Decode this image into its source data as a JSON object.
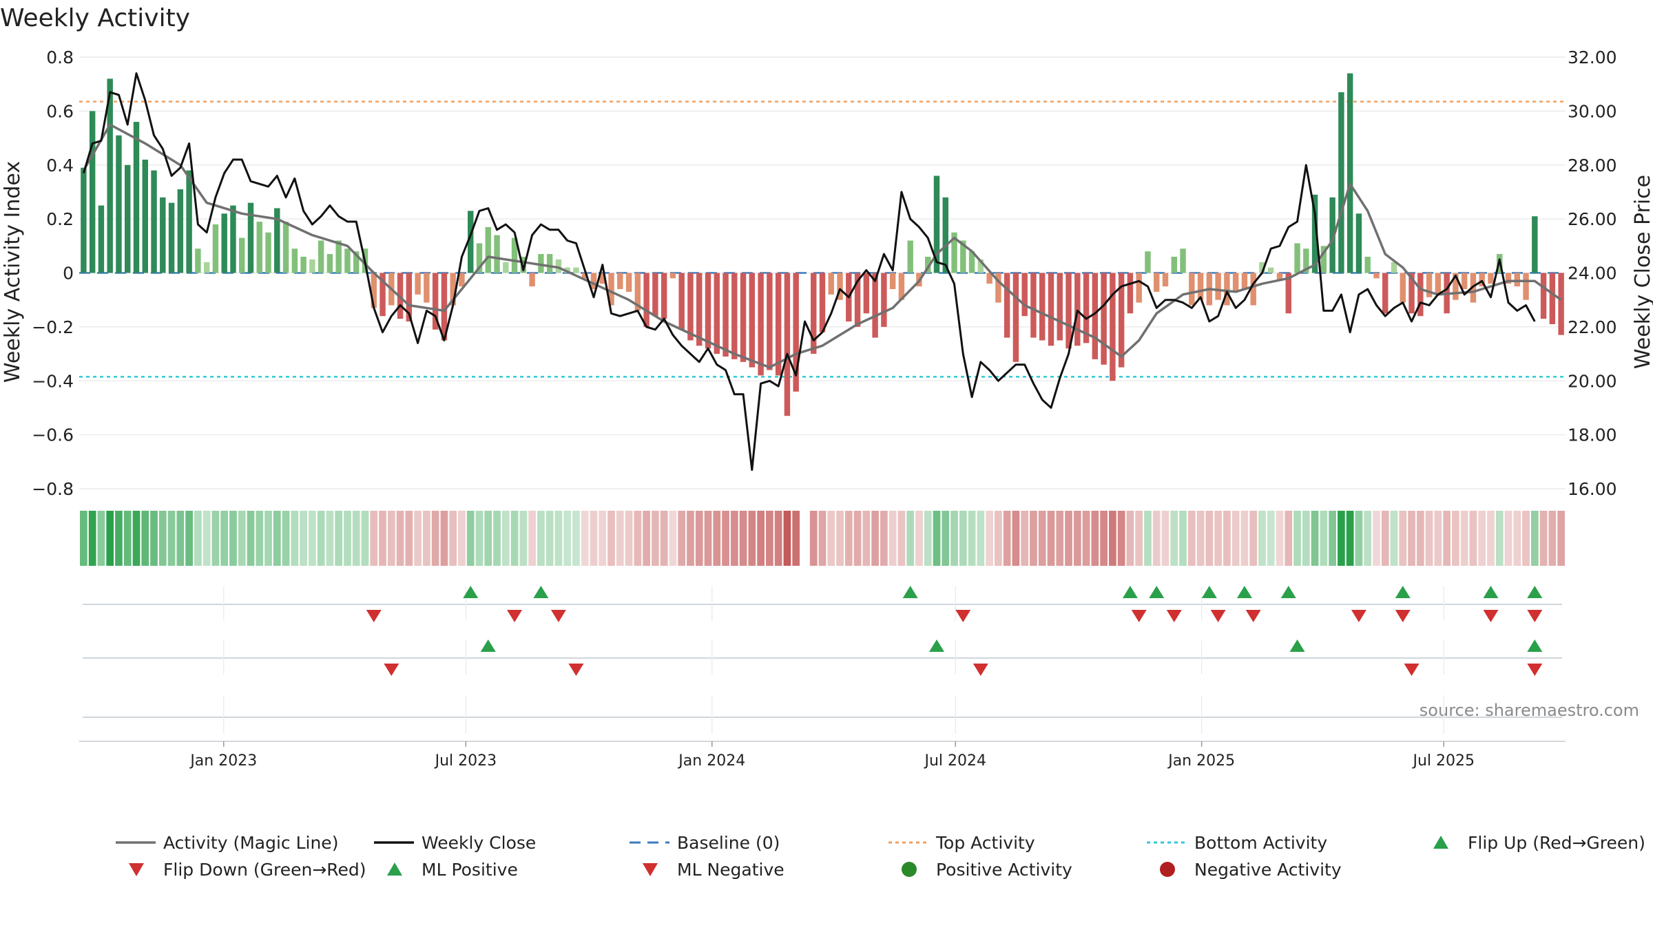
{
  "chart_data": {
    "type": "bar",
    "title": "Weekly Activity",
    "ylabel": "Weekly Activity Index",
    "ylabel_right": "Weekly Close Price",
    "source": "source: sharemaestro.com",
    "ylim": [
      -0.8,
      0.8
    ],
    "ylim_right": [
      16,
      32
    ],
    "yticks": [
      "0.8",
      "0.6",
      "0.4",
      "0.2",
      "0",
      "−0.2",
      "−0.4",
      "−0.6",
      "−0.8"
    ],
    "yticks_right": [
      "32.00",
      "30.00",
      "28.00",
      "26.00",
      "24.00",
      "22.00",
      "20.00",
      "18.00",
      "16.00"
    ],
    "top_activity": 0.635,
    "bottom_activity": -0.385,
    "x_range": [
      "2022-09-15",
      "2025-09-30"
    ],
    "x_ticks": [
      {
        "label": "Jan 2023",
        "date": "2023-01-01"
      },
      {
        "label": "Jul 2023",
        "date": "2023-07-01"
      },
      {
        "label": "Jan 2024",
        "date": "2024-01-01"
      },
      {
        "label": "Jul 2024",
        "date": "2024-07-01"
      },
      {
        "label": "Jan 2025",
        "date": "2025-01-01"
      },
      {
        "label": "Jul 2025",
        "date": "2025-07-01"
      }
    ],
    "activity_anchors": [
      [
        0,
        0.39
      ],
      [
        1,
        0.6
      ],
      [
        2,
        0.25
      ],
      [
        3,
        0.72
      ],
      [
        4,
        0.51
      ],
      [
        5,
        0.4
      ],
      [
        6,
        0.56
      ],
      [
        7,
        0.42
      ],
      [
        8,
        0.38
      ],
      [
        9,
        0.28
      ],
      [
        10,
        0.26
      ],
      [
        11,
        0.31
      ],
      [
        12,
        0.38
      ],
      [
        13,
        0.09
      ],
      [
        14,
        0.04
      ],
      [
        15,
        0.18
      ],
      [
        16,
        0.22
      ],
      [
        17,
        0.25
      ],
      [
        18,
        0.13
      ],
      [
        19,
        0.26
      ],
      [
        20,
        0.19
      ],
      [
        21,
        0.15
      ],
      [
        22,
        0.24
      ],
      [
        23,
        0.19
      ],
      [
        24,
        0.09
      ],
      [
        25,
        0.06
      ],
      [
        26,
        0.05
      ],
      [
        27,
        0.12
      ],
      [
        28,
        0.07
      ],
      [
        29,
        0.12
      ],
      [
        30,
        0.09
      ],
      [
        31,
        0.08
      ],
      [
        32,
        0.09
      ],
      [
        33,
        -0.13
      ],
      [
        34,
        -0.16
      ],
      [
        35,
        -0.12
      ],
      [
        36,
        -0.17
      ],
      [
        37,
        -0.18
      ],
      [
        38,
        -0.08
      ],
      [
        39,
        -0.11
      ],
      [
        40,
        -0.21
      ],
      [
        41,
        -0.25
      ],
      [
        42,
        -0.12
      ],
      [
        43,
        -0.05
      ],
      [
        44,
        0.23
      ],
      [
        45,
        0.11
      ],
      [
        46,
        0.17
      ],
      [
        47,
        0.14
      ],
      [
        48,
        0.04
      ],
      [
        49,
        0.13
      ],
      [
        50,
        0.06
      ],
      [
        51,
        -0.05
      ],
      [
        52,
        0.07
      ],
      [
        53,
        0.07
      ],
      [
        54,
        0.05
      ],
      [
        55,
        0.02
      ],
      [
        56,
        0.02
      ],
      [
        57,
        -0.02
      ],
      [
        58,
        -0.06
      ],
      [
        59,
        -0.04
      ],
      [
        60,
        -0.12
      ],
      [
        61,
        -0.06
      ],
      [
        62,
        -0.07
      ],
      [
        63,
        -0.14
      ],
      [
        64,
        -0.2
      ],
      [
        65,
        -0.16
      ],
      [
        66,
        -0.17
      ],
      [
        67,
        -0.02
      ],
      [
        68,
        -0.21
      ],
      [
        69,
        -0.25
      ],
      [
        70,
        -0.27
      ],
      [
        71,
        -0.28
      ],
      [
        72,
        -0.3
      ],
      [
        73,
        -0.31
      ],
      [
        74,
        -0.32
      ],
      [
        75,
        -0.33
      ],
      [
        76,
        -0.35
      ],
      [
        77,
        -0.38
      ],
      [
        78,
        -0.36
      ],
      [
        79,
        -0.38
      ],
      [
        80,
        -0.53
      ],
      [
        81,
        -0.44
      ],
      [
        83,
        -0.3
      ],
      [
        84,
        -0.22
      ],
      [
        85,
        -0.08
      ],
      [
        86,
        -0.1
      ],
      [
        87,
        -0.18
      ],
      [
        88,
        -0.2
      ],
      [
        89,
        -0.15
      ],
      [
        90,
        -0.24
      ],
      [
        91,
        -0.2
      ],
      [
        92,
        -0.06
      ],
      [
        93,
        -0.1
      ],
      [
        94,
        0.12
      ],
      [
        95,
        -0.05
      ],
      [
        96,
        0.06
      ],
      [
        97,
        0.36
      ],
      [
        98,
        0.28
      ],
      [
        99,
        0.15
      ],
      [
        100,
        0.12
      ],
      [
        101,
        0.08
      ],
      [
        102,
        0.05
      ],
      [
        103,
        -0.04
      ],
      [
        104,
        -0.11
      ],
      [
        105,
        -0.24
      ],
      [
        106,
        -0.33
      ],
      [
        107,
        -0.16
      ],
      [
        108,
        -0.24
      ],
      [
        109,
        -0.25
      ],
      [
        110,
        -0.27
      ],
      [
        111,
        -0.25
      ],
      [
        112,
        -0.28
      ],
      [
        113,
        -0.27
      ],
      [
        114,
        -0.26
      ],
      [
        115,
        -0.32
      ],
      [
        116,
        -0.34
      ],
      [
        117,
        -0.4
      ],
      [
        118,
        -0.35
      ],
      [
        119,
        -0.15
      ],
      [
        120,
        -0.11
      ],
      [
        121,
        0.08
      ],
      [
        122,
        -0.07
      ],
      [
        123,
        -0.05
      ],
      [
        124,
        0.06
      ],
      [
        125,
        0.09
      ],
      [
        126,
        -0.12
      ],
      [
        127,
        -0.1
      ],
      [
        128,
        -0.12
      ],
      [
        129,
        -0.1
      ],
      [
        130,
        -0.12
      ],
      [
        131,
        -0.07
      ],
      [
        132,
        -0.06
      ],
      [
        133,
        -0.12
      ],
      [
        134,
        0.04
      ],
      [
        135,
        0.02
      ],
      [
        136,
        -0.03
      ],
      [
        137,
        -0.15
      ],
      [
        138,
        0.11
      ],
      [
        139,
        0.09
      ],
      [
        140,
        0.29
      ],
      [
        141,
        0.1
      ],
      [
        142,
        0.28
      ],
      [
        143,
        0.67
      ],
      [
        144,
        0.74
      ],
      [
        145,
        0.22
      ],
      [
        146,
        0.06
      ],
      [
        147,
        -0.02
      ],
      [
        148,
        -0.15
      ],
      [
        149,
        0.04
      ],
      [
        150,
        -0.11
      ],
      [
        151,
        -0.15
      ],
      [
        152,
        -0.16
      ],
      [
        153,
        -0.09
      ],
      [
        154,
        -0.08
      ],
      [
        155,
        -0.15
      ],
      [
        156,
        -0.1
      ],
      [
        157,
        -0.06
      ],
      [
        158,
        -0.11
      ],
      [
        159,
        -0.05
      ],
      [
        160,
        -0.04
      ],
      [
        161,
        0.07
      ],
      [
        162,
        -0.04
      ],
      [
        163,
        -0.05
      ],
      [
        164,
        -0.1
      ],
      [
        165,
        0.21
      ],
      [
        166,
        -0.17
      ],
      [
        167,
        -0.19
      ],
      [
        168,
        -0.23
      ]
    ],
    "magic_line": [
      [
        0,
        0.38
      ],
      [
        3,
        0.55
      ],
      [
        7,
        0.48
      ],
      [
        11,
        0.4
      ],
      [
        14,
        0.26
      ],
      [
        18,
        0.22
      ],
      [
        22,
        0.2
      ],
      [
        26,
        0.14
      ],
      [
        30,
        0.1
      ],
      [
        33,
        0
      ],
      [
        37,
        -0.12
      ],
      [
        41,
        -0.14
      ],
      [
        43,
        -0.06
      ],
      [
        46,
        0.06
      ],
      [
        50,
        0.04
      ],
      [
        54,
        0.02
      ],
      [
        58,
        -0.04
      ],
      [
        62,
        -0.1
      ],
      [
        66,
        -0.18
      ],
      [
        70,
        -0.24
      ],
      [
        74,
        -0.3
      ],
      [
        78,
        -0.35
      ],
      [
        81,
        -0.3
      ],
      [
        84,
        -0.27
      ],
      [
        88,
        -0.19
      ],
      [
        92,
        -0.13
      ],
      [
        95,
        -0.03
      ],
      [
        97,
        0.07
      ],
      [
        99,
        0.13
      ],
      [
        101,
        0.08
      ],
      [
        104,
        -0.03
      ],
      [
        107,
        -0.12
      ],
      [
        111,
        -0.18
      ],
      [
        115,
        -0.24
      ],
      [
        118,
        -0.31
      ],
      [
        120,
        -0.25
      ],
      [
        122,
        -0.15
      ],
      [
        125,
        -0.08
      ],
      [
        128,
        -0.06
      ],
      [
        131,
        -0.07
      ],
      [
        134,
        -0.04
      ],
      [
        137,
        -0.02
      ],
      [
        140,
        0.03
      ],
      [
        142,
        0.12
      ],
      [
        144,
        0.33
      ],
      [
        146,
        0.23
      ],
      [
        148,
        0.07
      ],
      [
        150,
        0.02
      ],
      [
        152,
        -0.06
      ],
      [
        154,
        -0.08
      ],
      [
        158,
        -0.07
      ],
      [
        162,
        -0.03
      ],
      [
        165,
        -0.03
      ],
      [
        168,
        -0.1
      ]
    ],
    "weekly_close": [
      [
        0,
        27.7
      ],
      [
        1,
        28.8
      ],
      [
        2,
        28.9
      ],
      [
        3,
        30.7
      ],
      [
        4,
        30.6
      ],
      [
        5,
        29.5
      ],
      [
        6,
        31.4
      ],
      [
        7,
        30.4
      ],
      [
        8,
        29.1
      ],
      [
        9,
        28.6
      ],
      [
        10,
        27.6
      ],
      [
        11,
        27.9
      ],
      [
        12,
        28.8
      ],
      [
        13,
        25.8
      ],
      [
        14,
        25.5
      ],
      [
        15,
        26.8
      ],
      [
        16,
        27.7
      ],
      [
        17,
        28.2
      ],
      [
        18,
        28.2
      ],
      [
        19,
        27.4
      ],
      [
        20,
        27.3
      ],
      [
        21,
        27.2
      ],
      [
        22,
        27.6
      ],
      [
        23,
        26.8
      ],
      [
        24,
        27.5
      ],
      [
        25,
        26.3
      ],
      [
        26,
        25.8
      ],
      [
        27,
        26.1
      ],
      [
        28,
        26.5
      ],
      [
        29,
        26.1
      ],
      [
        30,
        25.9
      ],
      [
        31,
        25.9
      ],
      [
        32,
        24.4
      ],
      [
        33,
        22.7
      ],
      [
        34,
        21.8
      ],
      [
        35,
        22.4
      ],
      [
        36,
        22.8
      ],
      [
        37,
        22.5
      ],
      [
        38,
        21.4
      ],
      [
        39,
        22.6
      ],
      [
        40,
        22.4
      ],
      [
        41,
        21.5
      ],
      [
        42,
        22.8
      ],
      [
        43,
        24.6
      ],
      [
        44,
        25.4
      ],
      [
        45,
        26.3
      ],
      [
        46,
        26.4
      ],
      [
        47,
        25.6
      ],
      [
        48,
        25.8
      ],
      [
        49,
        25.5
      ],
      [
        50,
        24.1
      ],
      [
        51,
        25.4
      ],
      [
        52,
        25.8
      ],
      [
        53,
        25.6
      ],
      [
        54,
        25.6
      ],
      [
        55,
        25.2
      ],
      [
        56,
        25.1
      ],
      [
        57,
        24.1
      ],
      [
        58,
        23.1
      ],
      [
        59,
        24.3
      ],
      [
        60,
        22.5
      ],
      [
        61,
        22.4
      ],
      [
        62,
        22.5
      ],
      [
        63,
        22.6
      ],
      [
        64,
        22
      ],
      [
        65,
        21.9
      ],
      [
        66,
        22.3
      ],
      [
        67,
        21.7
      ],
      [
        68,
        21.3
      ],
      [
        69,
        21
      ],
      [
        70,
        20.7
      ],
      [
        71,
        21.2
      ],
      [
        72,
        20.6
      ],
      [
        73,
        20.4
      ],
      [
        74,
        19.5
      ],
      [
        75,
        19.5
      ],
      [
        76,
        16.7
      ],
      [
        77,
        19.9
      ],
      [
        78,
        20
      ],
      [
        79,
        19.8
      ],
      [
        80,
        21
      ],
      [
        81,
        20.2
      ],
      [
        82,
        22.2
      ],
      [
        83,
        21.5
      ],
      [
        84,
        21.8
      ],
      [
        85,
        22.5
      ],
      [
        86,
        23.4
      ],
      [
        87,
        23.1
      ],
      [
        88,
        23.7
      ],
      [
        89,
        24.1
      ],
      [
        90,
        23.7
      ],
      [
        91,
        24.7
      ],
      [
        92,
        24.1
      ],
      [
        93,
        27
      ],
      [
        94,
        26
      ],
      [
        95,
        25.7
      ],
      [
        96,
        25.3
      ],
      [
        97,
        24.4
      ],
      [
        98,
        24.3
      ],
      [
        99,
        23.6
      ],
      [
        100,
        21
      ],
      [
        101,
        19.4
      ],
      [
        102,
        20.7
      ],
      [
        103,
        20.4
      ],
      [
        104,
        20
      ],
      [
        105,
        20.3
      ],
      [
        106,
        20.6
      ],
      [
        107,
        20.6
      ],
      [
        108,
        19.9
      ],
      [
        109,
        19.3
      ],
      [
        110,
        19
      ],
      [
        111,
        20.1
      ],
      [
        112,
        21
      ],
      [
        113,
        22.6
      ],
      [
        114,
        22.3
      ],
      [
        115,
        22.5
      ],
      [
        116,
        22.8
      ],
      [
        117,
        23.2
      ],
      [
        118,
        23.5
      ],
      [
        119,
        23.6
      ],
      [
        120,
        23.7
      ],
      [
        121,
        23.5
      ],
      [
        122,
        22.7
      ],
      [
        123,
        23
      ],
      [
        124,
        23
      ],
      [
        125,
        22.9
      ],
      [
        126,
        22.7
      ],
      [
        127,
        23.1
      ],
      [
        128,
        22.2
      ],
      [
        129,
        22.4
      ],
      [
        130,
        23.3
      ],
      [
        131,
        22.7
      ],
      [
        132,
        23
      ],
      [
        133,
        23.6
      ],
      [
        134,
        24
      ],
      [
        135,
        24.9
      ],
      [
        136,
        25
      ],
      [
        137,
        25.7
      ],
      [
        138,
        25.9
      ],
      [
        139,
        28
      ],
      [
        140,
        26.2
      ],
      [
        141,
        22.6
      ],
      [
        142,
        22.6
      ],
      [
        143,
        23.2
      ],
      [
        144,
        21.8
      ],
      [
        145,
        23.2
      ],
      [
        146,
        23.4
      ],
      [
        147,
        22.8
      ],
      [
        148,
        22.4
      ],
      [
        149,
        22.7
      ],
      [
        150,
        22.9
      ],
      [
        151,
        22.2
      ],
      [
        152,
        22.9
      ],
      [
        153,
        22.8
      ],
      [
        154,
        23.2
      ],
      [
        155,
        23.4
      ],
      [
        156,
        23.9
      ],
      [
        157,
        23.2
      ],
      [
        158,
        23.5
      ],
      [
        159,
        23.7
      ],
      [
        160,
        23.1
      ],
      [
        161,
        24.5
      ],
      [
        162,
        22.9
      ],
      [
        163,
        22.6
      ],
      [
        164,
        22.8
      ],
      [
        165,
        22.2
      ]
    ],
    "flip_up": [
      44,
      52,
      94,
      119,
      122,
      128,
      132,
      137,
      150,
      160,
      165
    ],
    "flip_down": [
      33,
      49,
      54,
      100,
      120,
      124,
      129,
      133,
      145,
      150,
      160,
      165
    ],
    "ml_positive": [
      46,
      97,
      138,
      165
    ],
    "ml_negative": [
      35,
      56,
      102,
      151,
      165
    ],
    "legend": [
      {
        "label": "Activity (Magic Line)",
        "kind": "line",
        "color": "#707070"
      },
      {
        "label": "Weekly Close",
        "kind": "line",
        "color": "#111111"
      },
      {
        "label": "Baseline (0)",
        "kind": "dash",
        "color": "#3a7bbf"
      },
      {
        "label": "Top Activity",
        "kind": "dot",
        "color": "#f0a060"
      },
      {
        "label": "Bottom Activity",
        "kind": "dot",
        "color": "#30c8d8"
      },
      {
        "label": "Flip Up (Red→Green)",
        "kind": "tri-up",
        "color": "#2aa04a"
      },
      {
        "label": "Flip Down (Green→Red)",
        "kind": "tri-down",
        "color": "#d03030"
      },
      {
        "label": "ML Positive",
        "kind": "tri-up",
        "color": "#2aa04a"
      },
      {
        "label": "ML Negative",
        "kind": "tri-down",
        "color": "#d03030"
      },
      {
        "label": "Positive Activity",
        "kind": "circle",
        "color": "#2a8a2a"
      },
      {
        "label": "Negative Activity",
        "kind": "circle",
        "color": "#b02020"
      }
    ]
  }
}
